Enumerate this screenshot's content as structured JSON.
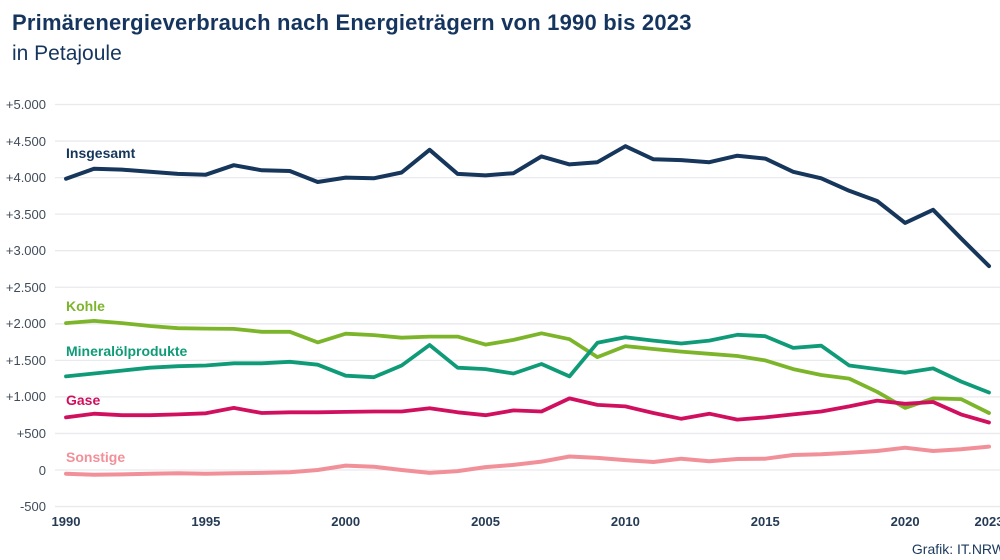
{
  "header": {
    "title": "Primärenergieverbrauch nach Energieträgern von 1990 bis 2023",
    "subtitle": "in Petajoule"
  },
  "footer": {
    "credit": "Grafik: IT.NRW"
  },
  "chart_data": {
    "type": "line",
    "title": "Primärenergieverbrauch nach Energieträgern von 1990 bis 2023",
    "unit_label": "in Petajoule",
    "grid": "horizontal",
    "legend_position": "inline-labels-left",
    "ylim": [
      -500,
      5000
    ],
    "x": [
      1990,
      1991,
      1992,
      1993,
      1994,
      1995,
      1996,
      1997,
      1998,
      1999,
      2000,
      2001,
      2002,
      2003,
      2004,
      2005,
      2006,
      2007,
      2008,
      2009,
      2010,
      2011,
      2012,
      2013,
      2014,
      2015,
      2016,
      2017,
      2018,
      2019,
      2020,
      2021,
      2022,
      2023
    ],
    "x_ticks": [
      {
        "label": "1990",
        "value": 1990
      },
      {
        "label": "1995",
        "value": 1995
      },
      {
        "label": "2000",
        "value": 2000
      },
      {
        "label": "2005",
        "value": 2005
      },
      {
        "label": "2010",
        "value": 2010
      },
      {
        "label": "2015",
        "value": 2015
      },
      {
        "label": "2020",
        "value": 2020
      },
      {
        "label": "2023",
        "value": 2023
      }
    ],
    "y_ticks": [
      {
        "label": "+5.000",
        "value": 5000
      },
      {
        "label": "+4.500",
        "value": 4500
      },
      {
        "label": "+4.000",
        "value": 4000
      },
      {
        "label": "+3.500",
        "value": 3500
      },
      {
        "label": "+3.000",
        "value": 3000
      },
      {
        "label": "+2.500",
        "value": 2500
      },
      {
        "label": "+2.000",
        "value": 2000
      },
      {
        "label": "+1.500",
        "value": 1500
      },
      {
        "label": "+1.000",
        "value": 1000
      },
      {
        "label": "+500",
        "value": 500
      },
      {
        "label": "0",
        "value": 0
      },
      {
        "label": "-500",
        "value": -500
      }
    ],
    "series": [
      {
        "name": "Insgesamt",
        "color": "#16365c",
        "stroke_width": 4,
        "values": [
          3985,
          4120,
          4110,
          4080,
          4050,
          4040,
          4170,
          4100,
          4090,
          3940,
          4000,
          3990,
          4070,
          4380,
          4050,
          4030,
          4060,
          4290,
          4180,
          4210,
          4430,
          4250,
          4240,
          4210,
          4300,
          4260,
          4080,
          3990,
          3820,
          3680,
          3380,
          3560,
          3170,
          2790
        ]
      },
      {
        "name": "Kohle",
        "color": "#7cb52a",
        "stroke_width": 3.8,
        "values": [
          2010,
          2040,
          2010,
          1970,
          1940,
          1935,
          1930,
          1890,
          1890,
          1745,
          1865,
          1845,
          1810,
          1825,
          1825,
          1715,
          1780,
          1870,
          1790,
          1545,
          1695,
          1655,
          1620,
          1590,
          1560,
          1500,
          1380,
          1300,
          1250,
          1070,
          850,
          980,
          970,
          780
        ]
      },
      {
        "name": "Mineralölprodukte",
        "color": "#0f9b77",
        "stroke_width": 3.8,
        "values": [
          1280,
          1320,
          1360,
          1400,
          1420,
          1430,
          1460,
          1460,
          1480,
          1440,
          1290,
          1270,
          1430,
          1710,
          1400,
          1380,
          1320,
          1450,
          1280,
          1740,
          1815,
          1770,
          1730,
          1770,
          1850,
          1830,
          1670,
          1700,
          1430,
          1380,
          1330,
          1390,
          1210,
          1060
        ]
      },
      {
        "name": "Gase",
        "color": "#d0105f",
        "stroke_width": 3.8,
        "values": [
          720,
          770,
          750,
          750,
          760,
          775,
          850,
          780,
          790,
          790,
          795,
          800,
          800,
          845,
          790,
          750,
          815,
          800,
          980,
          890,
          870,
          780,
          700,
          770,
          690,
          720,
          760,
          800,
          870,
          950,
          905,
          930,
          760,
          650
        ]
      },
      {
        "name": "Sonstige",
        "color": "#f29099",
        "stroke_width": 4,
        "values": [
          -50,
          -65,
          -60,
          -50,
          -45,
          -50,
          -45,
          -40,
          -30,
          0,
          60,
          45,
          0,
          -40,
          -15,
          40,
          70,
          115,
          185,
          165,
          135,
          110,
          155,
          120,
          150,
          155,
          205,
          215,
          235,
          260,
          305,
          260,
          285,
          320
        ]
      }
    ]
  }
}
